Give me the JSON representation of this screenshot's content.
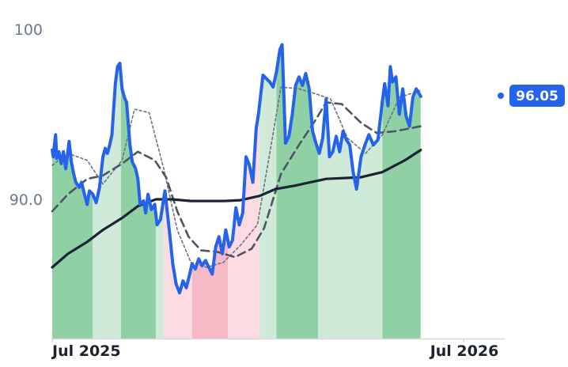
{
  "chart_data": {
    "type": "line",
    "title": "",
    "xlabel": "",
    "ylabel": "",
    "x_tick_labels": [
      {
        "date": "2025-07-01",
        "label": "Jul 2025"
      },
      {
        "date": "2026-07-01",
        "label": "Jul 2026"
      }
    ],
    "y_tick_labels": [
      {
        "value": 90,
        "label": "90.0"
      },
      {
        "value": 100,
        "label": "100"
      }
    ],
    "ylim": [
      82,
      101
    ],
    "xlim": [
      "2025-07-01",
      "2026-07-01"
    ],
    "grid": false,
    "legend": "none",
    "last_value_label": "96.05",
    "colors": {
      "price": "#2563eb",
      "sma_slow": "#1c2433",
      "sma_mid": "#4b5563",
      "sma_fast": "#6b7280",
      "band_green_dark": "#8fd0a5",
      "band_green_light": "#cfead8",
      "band_red_dark": "#f7b9c6",
      "band_red_light": "#fcdbe2",
      "axis": "#d4d8de"
    },
    "regime_bands": [
      {
        "from": "2025-07-01",
        "to": "2025-08-06",
        "tone": "green",
        "shade": "dark"
      },
      {
        "from": "2025-08-06",
        "to": "2025-08-31",
        "tone": "green",
        "shade": "light"
      },
      {
        "from": "2025-08-31",
        "to": "2025-10-01",
        "tone": "green",
        "shade": "dark"
      },
      {
        "from": "2025-10-01",
        "to": "2025-10-08",
        "tone": "green",
        "shade": "light"
      },
      {
        "from": "2025-10-08",
        "to": "2025-11-02",
        "tone": "red",
        "shade": "light"
      },
      {
        "from": "2025-11-02",
        "to": "2025-12-04",
        "tone": "red",
        "shade": "dark"
      },
      {
        "from": "2025-12-04",
        "to": "2026-01-01",
        "tone": "red",
        "shade": "light"
      },
      {
        "from": "2026-01-01",
        "to": "2026-01-16",
        "tone": "green",
        "shade": "light"
      },
      {
        "from": "2026-01-16",
        "to": "2026-02-22",
        "tone": "green",
        "shade": "dark"
      },
      {
        "from": "2026-02-22",
        "to": "2026-04-20",
        "tone": "green",
        "shade": "light"
      },
      {
        "from": "2026-04-20",
        "to": "2026-05-24",
        "tone": "green",
        "shade": "dark"
      }
    ],
    "series": [
      {
        "key": "price",
        "style": "thick",
        "points": [
          [
            "2025-07-01",
            92.9
          ],
          [
            "2025-07-02",
            92.5
          ],
          [
            "2025-07-03",
            93.2
          ],
          [
            "2025-07-04",
            93.8
          ],
          [
            "2025-07-05",
            92.4
          ],
          [
            "2025-07-07",
            92.8
          ],
          [
            "2025-07-09",
            92.1
          ],
          [
            "2025-07-11",
            92.8
          ],
          [
            "2025-07-13",
            91.8
          ],
          [
            "2025-07-16",
            93.4
          ],
          [
            "2025-07-18",
            92.2
          ],
          [
            "2025-07-20",
            91.5
          ],
          [
            "2025-07-22",
            91.0
          ],
          [
            "2025-07-25",
            90.7
          ],
          [
            "2025-07-27",
            91.0
          ],
          [
            "2025-07-30",
            90.2
          ],
          [
            "2025-08-01",
            89.7
          ],
          [
            "2025-08-03",
            90.5
          ],
          [
            "2025-08-06",
            90.3
          ],
          [
            "2025-08-09",
            89.8
          ],
          [
            "2025-08-12",
            90.7
          ],
          [
            "2025-08-15",
            92.5
          ],
          [
            "2025-08-17",
            93.0
          ],
          [
            "2025-08-19",
            92.7
          ],
          [
            "2025-08-21",
            93.2
          ],
          [
            "2025-08-23",
            93.8
          ],
          [
            "2025-08-26",
            96.8
          ],
          [
            "2025-08-28",
            97.8
          ],
          [
            "2025-08-30",
            98.0
          ],
          [
            "2025-09-01",
            96.5
          ],
          [
            "2025-09-03",
            96.0
          ],
          [
            "2025-09-05",
            95.7
          ],
          [
            "2025-09-08",
            93.2
          ],
          [
            "2025-09-10",
            92.2
          ],
          [
            "2025-09-13",
            91.8
          ],
          [
            "2025-09-15",
            91.2
          ],
          [
            "2025-09-17",
            89.7
          ],
          [
            "2025-09-20",
            89.9
          ],
          [
            "2025-09-22",
            89.2
          ],
          [
            "2025-09-24",
            90.3
          ],
          [
            "2025-09-27",
            89.4
          ],
          [
            "2025-09-30",
            89.7
          ],
          [
            "2025-10-02",
            88.5
          ],
          [
            "2025-10-05",
            88.8
          ],
          [
            "2025-10-09",
            90.5
          ],
          [
            "2025-10-13",
            88.1
          ],
          [
            "2025-10-16",
            86.2
          ],
          [
            "2025-10-19",
            85.0
          ],
          [
            "2025-10-22",
            84.5
          ],
          [
            "2025-10-25",
            85.2
          ],
          [
            "2025-10-28",
            84.8
          ],
          [
            "2025-10-31",
            85.6
          ],
          [
            "2025-11-02",
            86.2
          ],
          [
            "2025-11-05",
            85.9
          ],
          [
            "2025-11-08",
            86.5
          ],
          [
            "2025-11-11",
            86.1
          ],
          [
            "2025-11-14",
            86.4
          ],
          [
            "2025-11-17",
            86.0
          ],
          [
            "2025-11-20",
            85.6
          ],
          [
            "2025-11-23",
            87.2
          ],
          [
            "2025-11-26",
            87.8
          ],
          [
            "2025-11-29",
            86.8
          ],
          [
            "2025-12-02",
            88.2
          ],
          [
            "2025-12-05",
            87.2
          ],
          [
            "2025-12-08",
            87.6
          ],
          [
            "2025-12-11",
            89.5
          ],
          [
            "2025-12-14",
            88.5
          ],
          [
            "2025-12-17",
            89.2
          ],
          [
            "2025-12-20",
            92.5
          ],
          [
            "2025-12-23",
            92.0
          ],
          [
            "2025-12-26",
            91.0
          ],
          [
            "2025-12-29",
            94.2
          ],
          [
            "2025-12-31",
            95.0
          ],
          [
            "2026-01-04",
            97.3
          ],
          [
            "2026-01-07",
            97.1
          ],
          [
            "2026-01-10",
            96.9
          ],
          [
            "2026-01-13",
            96.6
          ],
          [
            "2026-01-16",
            97.5
          ],
          [
            "2026-01-19",
            98.8
          ],
          [
            "2026-01-21",
            99.1
          ],
          [
            "2026-01-24",
            93.3
          ],
          [
            "2026-01-27",
            93.7
          ],
          [
            "2026-01-30",
            95.0
          ],
          [
            "2026-02-02",
            96.7
          ],
          [
            "2026-02-05",
            97.2
          ],
          [
            "2026-02-08",
            96.7
          ],
          [
            "2026-02-11",
            97.4
          ],
          [
            "2026-02-14",
            96.5
          ],
          [
            "2026-02-17",
            94.0
          ],
          [
            "2026-02-20",
            93.3
          ],
          [
            "2026-02-23",
            92.7
          ],
          [
            "2026-02-26",
            93.6
          ],
          [
            "2026-03-01",
            95.9
          ],
          [
            "2026-03-04",
            92.5
          ],
          [
            "2026-03-07",
            92.8
          ],
          [
            "2026-03-10",
            93.7
          ],
          [
            "2026-03-13",
            92.8
          ],
          [
            "2026-03-16",
            94.0
          ],
          [
            "2026-03-19",
            93.5
          ],
          [
            "2026-03-22",
            93.2
          ],
          [
            "2026-03-25",
            91.6
          ],
          [
            "2026-03-28",
            90.6
          ],
          [
            "2026-04-01",
            92.5
          ],
          [
            "2026-04-05",
            93.3
          ],
          [
            "2026-04-08",
            93.8
          ],
          [
            "2026-04-12",
            93.2
          ],
          [
            "2026-04-16",
            93.5
          ],
          [
            "2026-04-20",
            95.8
          ],
          [
            "2026-04-22",
            96.8
          ],
          [
            "2026-04-25",
            95.5
          ],
          [
            "2026-04-27",
            97.8
          ],
          [
            "2026-04-29",
            96.9
          ],
          [
            "2026-05-02",
            97.2
          ],
          [
            "2026-05-05",
            95.0
          ],
          [
            "2026-05-08",
            96.5
          ],
          [
            "2026-05-11",
            94.9
          ],
          [
            "2026-05-14",
            94.3
          ],
          [
            "2026-05-17",
            96.0
          ],
          [
            "2026-05-20",
            96.5
          ],
          [
            "2026-05-24",
            96.05
          ]
        ]
      },
      {
        "key": "sma_slow",
        "style": "solid",
        "points": [
          [
            "2025-07-01",
            86.0
          ],
          [
            "2025-07-15",
            86.8
          ],
          [
            "2025-08-01",
            87.5
          ],
          [
            "2025-08-15",
            88.2
          ],
          [
            "2025-09-01",
            88.9
          ],
          [
            "2025-09-15",
            89.6
          ],
          [
            "2025-10-01",
            90.0
          ],
          [
            "2025-10-15",
            90.0
          ],
          [
            "2025-11-01",
            89.9
          ],
          [
            "2025-12-01",
            89.9
          ],
          [
            "2025-12-15",
            89.95
          ],
          [
            "2026-01-01",
            90.2
          ],
          [
            "2026-01-15",
            90.6
          ],
          [
            "2026-02-01",
            90.8
          ],
          [
            "2026-03-01",
            91.2
          ],
          [
            "2026-04-01",
            91.3
          ],
          [
            "2026-04-20",
            91.6
          ],
          [
            "2026-05-10",
            92.3
          ],
          [
            "2026-05-24",
            92.9
          ]
        ]
      },
      {
        "key": "sma_mid",
        "style": "dashed",
        "points": [
          [
            "2025-07-01",
            89.3
          ],
          [
            "2025-07-15",
            90.3
          ],
          [
            "2025-08-01",
            91.2
          ],
          [
            "2025-08-15",
            91.4
          ],
          [
            "2025-09-01",
            92.1
          ],
          [
            "2025-09-15",
            92.8
          ],
          [
            "2025-09-30",
            92.3
          ],
          [
            "2025-10-10",
            91.3
          ],
          [
            "2025-10-20",
            89.3
          ],
          [
            "2025-10-30",
            87.8
          ],
          [
            "2025-11-10",
            87.0
          ],
          [
            "2025-11-25",
            86.9
          ],
          [
            "2025-12-10",
            86.6
          ],
          [
            "2025-12-25",
            87.1
          ],
          [
            "2026-01-05",
            88.3
          ],
          [
            "2026-01-20",
            91.5
          ],
          [
            "2026-02-05",
            93.2
          ],
          [
            "2026-02-20",
            94.7
          ],
          [
            "2026-03-01",
            95.7
          ],
          [
            "2026-03-15",
            95.6
          ],
          [
            "2026-04-01",
            94.5
          ],
          [
            "2026-04-15",
            93.9
          ],
          [
            "2026-05-01",
            94.0
          ],
          [
            "2026-05-24",
            94.3
          ]
        ]
      },
      {
        "key": "sma_fast",
        "style": "dotted",
        "points": [
          [
            "2025-07-01",
            92.0
          ],
          [
            "2025-07-15",
            92.7
          ],
          [
            "2025-08-01",
            92.3
          ],
          [
            "2025-08-15",
            90.9
          ],
          [
            "2025-09-01",
            92.3
          ],
          [
            "2025-09-12",
            95.3
          ],
          [
            "2025-09-25",
            95.1
          ],
          [
            "2025-10-08",
            91.8
          ],
          [
            "2025-10-20",
            88.2
          ],
          [
            "2025-11-01",
            86.3
          ],
          [
            "2025-11-15",
            86.0
          ],
          [
            "2025-11-30",
            86.3
          ],
          [
            "2025-12-15",
            87.3
          ],
          [
            "2025-12-30",
            88.5
          ],
          [
            "2026-01-10",
            92.7
          ],
          [
            "2026-01-20",
            96.6
          ],
          [
            "2026-02-05",
            96.5
          ],
          [
            "2026-02-20",
            96.2
          ],
          [
            "2026-03-05",
            95.9
          ],
          [
            "2026-03-20",
            93.6
          ],
          [
            "2026-04-05",
            92.7
          ],
          [
            "2026-04-20",
            93.8
          ],
          [
            "2026-05-05",
            96.0
          ],
          [
            "2026-05-24",
            96.4
          ]
        ]
      }
    ]
  }
}
